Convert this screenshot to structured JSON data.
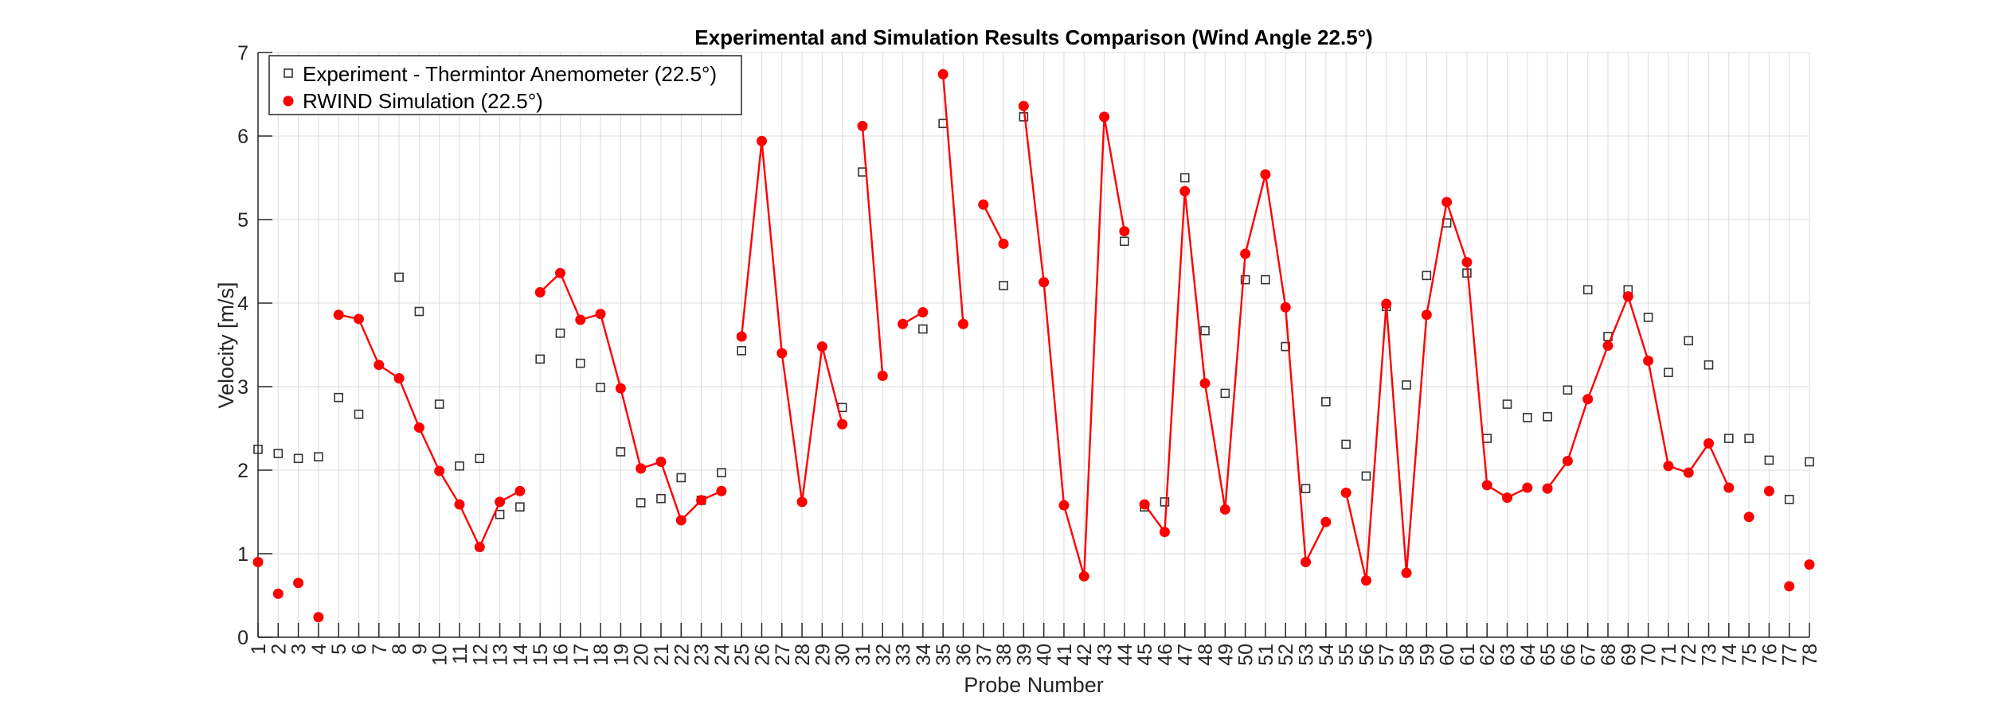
{
  "chart_data": {
    "type": "line",
    "title": "Experimental and Simulation Results Comparison (Wind Angle 22.5°)",
    "xlabel": "Probe Number",
    "ylabel": "Velocity [m/s]",
    "xlim": [
      1,
      78
    ],
    "ylim": [
      0,
      7
    ],
    "yticks": [
      0,
      1,
      2,
      3,
      4,
      5,
      6,
      7
    ],
    "x": [
      1,
      2,
      3,
      4,
      5,
      6,
      7,
      8,
      9,
      10,
      11,
      12,
      13,
      14,
      15,
      16,
      17,
      18,
      19,
      20,
      21,
      22,
      23,
      24,
      25,
      26,
      27,
      28,
      29,
      30,
      31,
      32,
      33,
      34,
      35,
      36,
      37,
      38,
      39,
      40,
      41,
      42,
      43,
      44,
      45,
      46,
      47,
      48,
      49,
      50,
      51,
      52,
      53,
      54,
      55,
      56,
      57,
      58,
      59,
      60,
      61,
      62,
      63,
      64,
      65,
      66,
      67,
      68,
      69,
      70,
      71,
      72,
      73,
      74,
      75,
      76,
      77,
      78
    ],
    "grid": true,
    "legend_position": "top-left",
    "series": [
      {
        "name": "Experiment - Thermintor Anemometer (22.5°)",
        "style": "open-square-marker",
        "color": "#333333",
        "values": [
          2.25,
          2.2,
          2.14,
          2.16,
          2.87,
          2.67,
          null,
          4.31,
          3.9,
          2.79,
          2.05,
          2.14,
          1.47,
          1.56,
          3.33,
          3.64,
          3.28,
          2.99,
          2.22,
          1.61,
          1.66,
          1.91,
          1.64,
          1.97,
          3.43,
          null,
          null,
          null,
          null,
          2.75,
          5.57,
          null,
          null,
          3.69,
          6.15,
          null,
          null,
          4.21,
          6.23,
          null,
          null,
          null,
          null,
          4.74,
          1.56,
          1.62,
          5.5,
          3.67,
          2.92,
          4.28,
          4.28,
          3.48,
          1.78,
          2.82,
          2.31,
          1.93,
          3.96,
          3.02,
          4.33,
          4.96,
          4.36,
          2.38,
          2.79,
          2.63,
          2.64,
          2.96,
          4.16,
          3.6,
          4.16,
          3.83,
          3.17,
          3.55,
          3.26,
          2.38,
          2.38,
          2.12,
          1.65,
          2.1
        ]
      },
      {
        "name": "RWIND Simulation (22.5°)",
        "style": "filled-circle-marker-with-line",
        "color": "#ff0000",
        "connected_groups": [
          [
            1
          ],
          [
            2
          ],
          [
            3
          ],
          [
            4
          ],
          [
            5,
            14
          ],
          [
            15,
            24
          ],
          [
            25,
            30
          ],
          [
            31,
            32
          ],
          [
            33,
            34
          ],
          [
            35,
            36
          ],
          [
            37,
            38
          ],
          [
            39,
            44
          ],
          [
            45,
            54
          ],
          [
            55,
            64
          ],
          [
            65,
            74
          ],
          [
            75
          ],
          [
            76
          ],
          [
            77
          ],
          [
            78
          ]
        ],
        "values": [
          0.9,
          0.52,
          0.65,
          0.24,
          3.86,
          3.81,
          3.26,
          3.1,
          2.51,
          1.99,
          1.59,
          1.08,
          1.62,
          1.75,
          4.13,
          4.36,
          3.8,
          3.87,
          2.98,
          2.02,
          2.1,
          1.4,
          1.64,
          1.75,
          3.6,
          5.94,
          3.4,
          1.62,
          3.48,
          2.55,
          6.12,
          3.13,
          3.75,
          3.89,
          6.74,
          3.75,
          5.18,
          4.71,
          6.36,
          4.25,
          1.58,
          0.73,
          6.23,
          4.86,
          1.59,
          1.26,
          5.34,
          3.04,
          1.53,
          4.59,
          5.54,
          3.95,
          0.9,
          1.38,
          1.73,
          0.68,
          3.99,
          0.77,
          3.86,
          5.21,
          4.49,
          1.82,
          1.67,
          1.79,
          1.78,
          2.11,
          2.85,
          3.49,
          4.08,
          3.31,
          2.05,
          1.97,
          2.32,
          1.79,
          1.44,
          1.75,
          0.61,
          0.87
        ]
      }
    ]
  }
}
